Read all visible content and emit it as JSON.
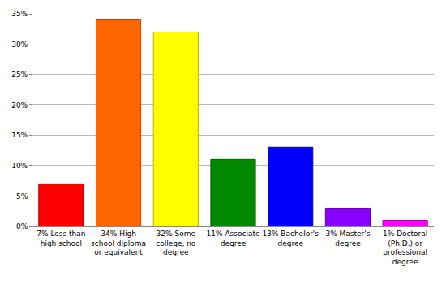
{
  "chart_data": {
    "type": "bar",
    "categories": [
      "7% Less than high school",
      "34% High school diploma or equivalent",
      "32% Some college, no degree",
      "11% Associate degree",
      "13% Bachelor's degree",
      "3% Master's degree",
      "1% Doctoral (Ph.D.) or professional degree"
    ],
    "values": [
      7,
      34,
      32,
      11,
      13,
      3,
      1
    ],
    "colors": [
      "#ff0000",
      "#ff6600",
      "#ffff00",
      "#008800",
      "#0000ff",
      "#8800ff",
      "#ff00ff"
    ],
    "ylim": [
      0,
      35
    ],
    "yticks": [
      {
        "value": 0,
        "label": "0%"
      },
      {
        "value": 5,
        "label": "5%"
      },
      {
        "value": 10,
        "label": "10%"
      },
      {
        "value": 15,
        "label": "15%"
      },
      {
        "value": 20,
        "label": "20%"
      },
      {
        "value": 25,
        "label": "25%"
      },
      {
        "value": 30,
        "label": "30%"
      },
      {
        "value": 35,
        "label": "35%"
      }
    ],
    "grid": true
  }
}
